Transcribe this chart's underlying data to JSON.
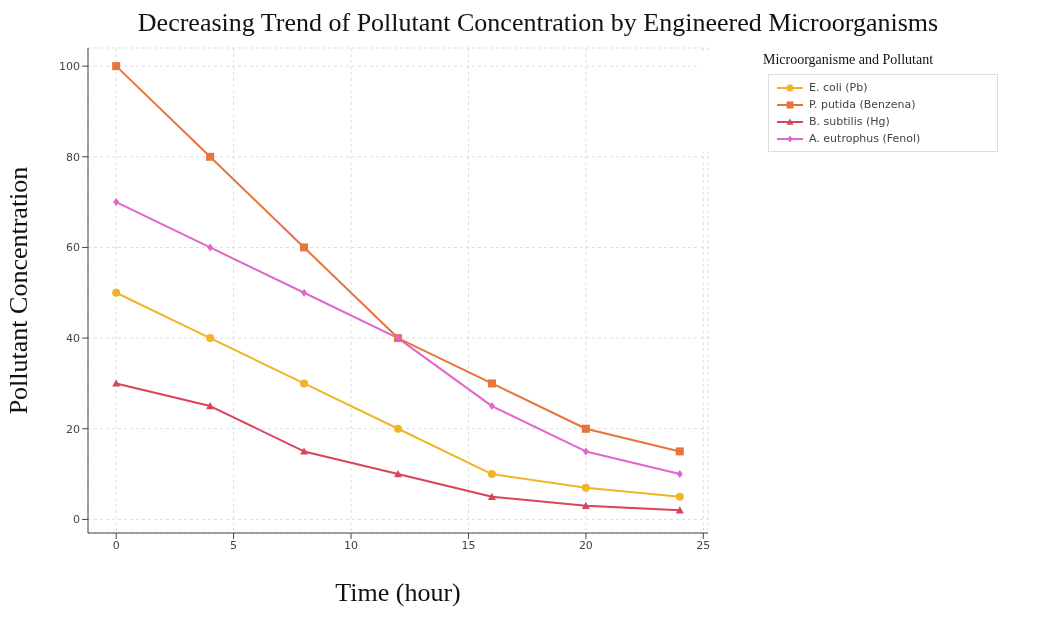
{
  "chart_data": {
    "type": "line",
    "title": "Decreasing Trend of Pollutant Concentration by Engineered Microorganisms",
    "xlabel": "Time (hour)",
    "ylabel": "Pollutant Concentration",
    "legend_title": "Microorganisme and Pollutant",
    "legend": "top right",
    "grid": true,
    "line_style": "solid",
    "x": [
      0,
      4,
      8,
      12,
      16,
      20,
      24
    ],
    "xlim": [
      -1.2,
      25.2
    ],
    "xticks": [
      0,
      5,
      10,
      15,
      20,
      25
    ],
    "ylim": [
      -3,
      104
    ],
    "yticks": [
      0,
      20,
      40,
      60,
      80,
      100
    ],
    "series": [
      {
        "name": "E. coli (Pb)",
        "color": "#f0b429",
        "marker": "circle",
        "values": [
          50,
          40,
          30,
          20,
          10,
          7,
          5
        ]
      },
      {
        "name": "P. putida (Benzena)",
        "color": "#e8743b",
        "marker": "square",
        "values": [
          100,
          80,
          60,
          40,
          30,
          20,
          15
        ]
      },
      {
        "name": "B. subtilis (Hg)",
        "color": "#d9445a",
        "marker": "triangle",
        "values": [
          30,
          25,
          15,
          10,
          5,
          3,
          2
        ]
      },
      {
        "name": "A. eutrophus (Fenol)",
        "color": "#e066cc",
        "marker": "diamond",
        "values": [
          70,
          60,
          50,
          40,
          25,
          15,
          10
        ]
      }
    ]
  }
}
